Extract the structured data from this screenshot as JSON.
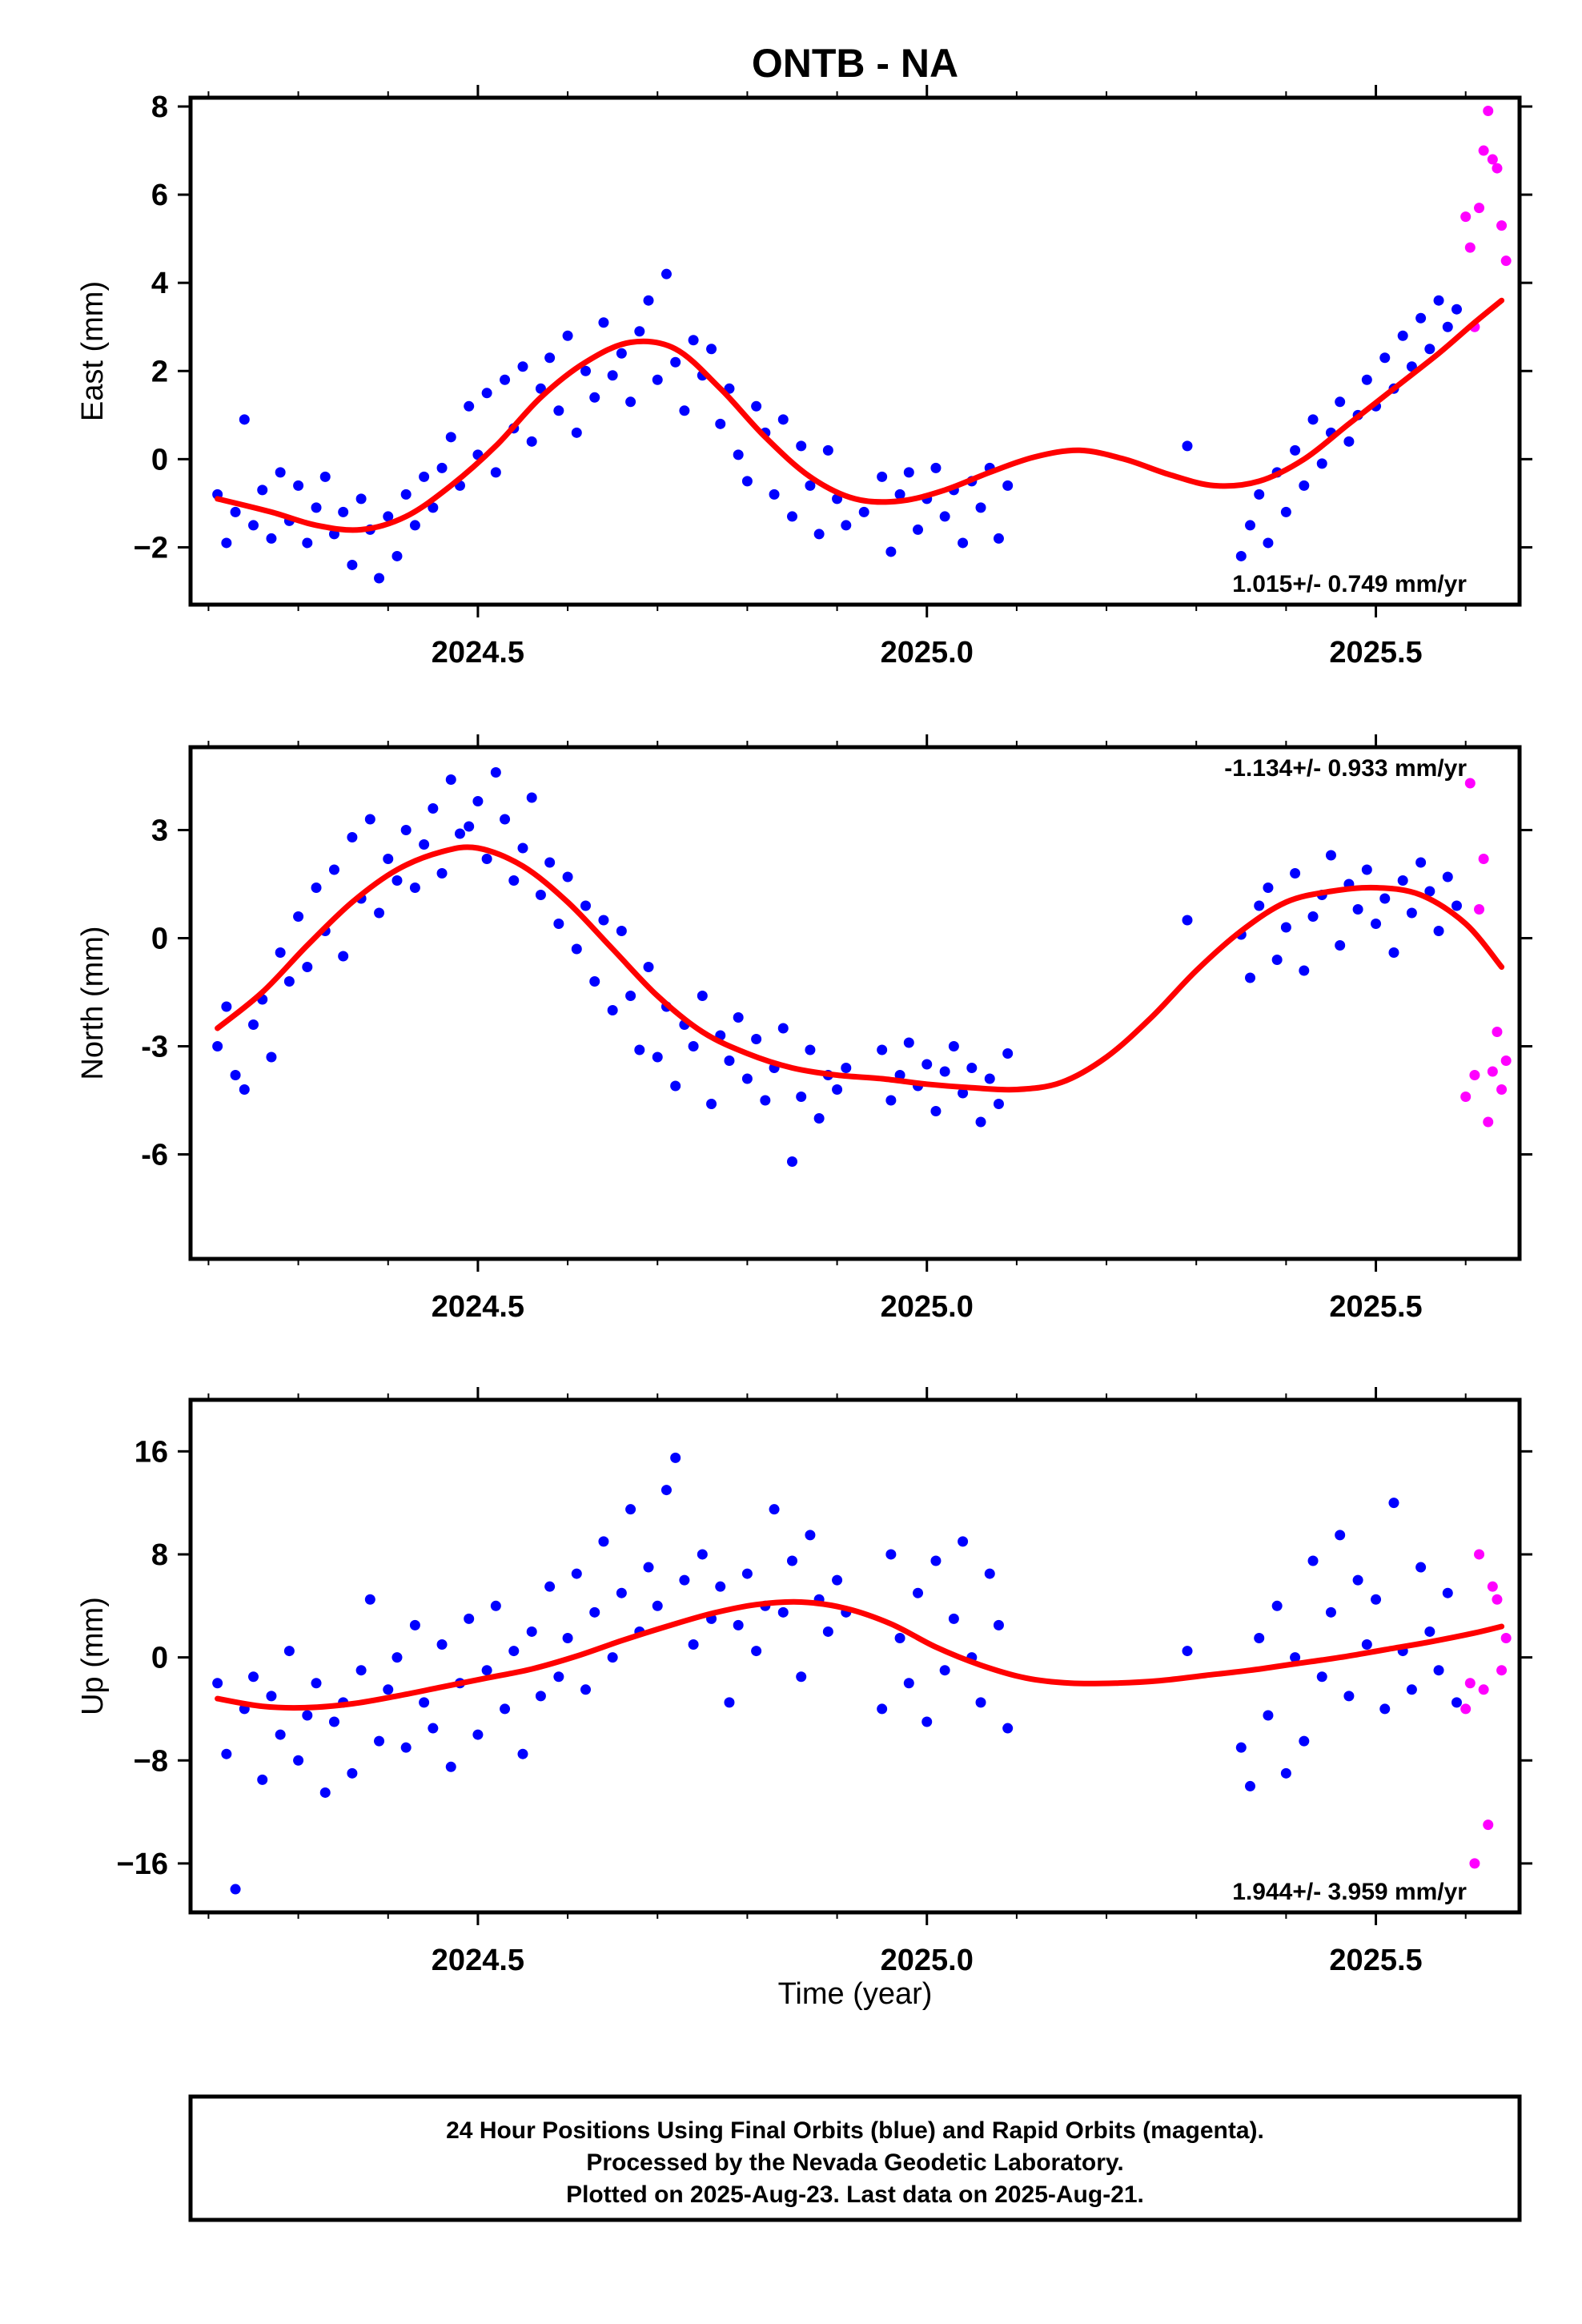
{
  "title": "ONTB - NA",
  "x_axis_label": "Time (year)",
  "caption": {
    "line1": "24 Hour Positions Using Final Orbits (blue) and Rapid Orbits (magenta).",
    "line2": "Processed by the Nevada Geodetic Laboratory.",
    "line3": "Plotted on 2025-Aug-23. Last data on 2025-Aug-21."
  },
  "colors": {
    "final": "#0000ff",
    "rapid": "#ff00ff",
    "fit": "#ff0000",
    "frame": "#000000"
  },
  "chart_data": [
    {
      "type": "scatter",
      "name": "east",
      "ylabel": "East (mm)",
      "xlim": [
        2024.18,
        2025.66
      ],
      "ylim": [
        -3.3,
        8.2
      ],
      "xticks": [
        2024.5,
        2025.0,
        2025.5
      ],
      "xtick_labels": [
        "2024.5",
        "2025.0",
        "2025.5"
      ],
      "yticks": [
        -2,
        0,
        2,
        4,
        6,
        8
      ],
      "ytick_labels": [
        "−2",
        "0",
        "2",
        "4",
        "6",
        "8"
      ],
      "rate_text": "1.015+/- 0.749 mm/yr",
      "rate_position": "bottom-right",
      "grid": false,
      "fit_curve": {
        "x": [
          2024.21,
          2024.27,
          2024.32,
          2024.37,
          2024.42,
          2024.47,
          2024.52,
          2024.57,
          2024.62,
          2024.67,
          2024.72,
          2024.77,
          2024.82,
          2024.87,
          2024.92,
          2024.97,
          2025.02,
          2025.07,
          2025.12,
          2025.17,
          2025.22,
          2025.27,
          2025.32,
          2025.37,
          2025.42,
          2025.47,
          2025.52,
          2025.57,
          2025.61,
          2025.64
        ],
        "y": [
          -0.9,
          -1.2,
          -1.5,
          -1.6,
          -1.3,
          -0.6,
          0.3,
          1.4,
          2.2,
          2.65,
          2.5,
          1.6,
          0.5,
          -0.4,
          -0.9,
          -0.95,
          -0.7,
          -0.3,
          0.05,
          0.2,
          0.0,
          -0.35,
          -0.6,
          -0.5,
          0.0,
          0.8,
          1.6,
          2.4,
          3.1,
          3.6
        ]
      },
      "final_x": [
        2024.21,
        2024.22,
        2024.23,
        2024.24,
        2024.25,
        2024.26,
        2024.27,
        2024.28,
        2024.29,
        2024.3,
        2024.31,
        2024.32,
        2024.33,
        2024.34,
        2024.35,
        2024.36,
        2024.37,
        2024.38,
        2024.39,
        2024.4,
        2024.41,
        2024.42,
        2024.43,
        2024.44,
        2024.45,
        2024.46,
        2024.47,
        2024.48,
        2024.49,
        2024.5,
        2024.51,
        2024.52,
        2024.53,
        2024.54,
        2024.55,
        2024.56,
        2024.57,
        2024.58,
        2024.59,
        2024.6,
        2024.61,
        2024.62,
        2024.63,
        2024.64,
        2024.65,
        2024.66,
        2024.67,
        2024.68,
        2024.69,
        2024.7,
        2024.71,
        2024.72,
        2024.73,
        2024.74,
        2024.75,
        2024.76,
        2024.77,
        2024.78,
        2024.79,
        2024.8,
        2024.81,
        2024.82,
        2024.83,
        2024.84,
        2024.85,
        2024.86,
        2024.87,
        2024.88,
        2024.89,
        2024.9,
        2024.91,
        2024.93,
        2024.95,
        2024.96,
        2024.97,
        2024.98,
        2024.99,
        2025.0,
        2025.01,
        2025.02,
        2025.03,
        2025.04,
        2025.05,
        2025.06,
        2025.07,
        2025.08,
        2025.09,
        2025.29,
        2025.35,
        2025.36,
        2025.37,
        2025.38,
        2025.39,
        2025.4,
        2025.41,
        2025.42,
        2025.43,
        2025.44,
        2025.45,
        2025.46,
        2025.47,
        2025.48,
        2025.49,
        2025.5,
        2025.51,
        2025.52,
        2025.53,
        2025.54,
        2025.55,
        2025.56,
        2025.57,
        2025.58,
        2025.59
      ],
      "final_y": [
        -0.8,
        -1.9,
        -1.2,
        0.9,
        -1.5,
        -0.7,
        -1.8,
        -0.3,
        -1.4,
        -0.6,
        -1.9,
        -1.1,
        -0.4,
        -1.7,
        -1.2,
        -2.4,
        -0.9,
        -1.6,
        -2.7,
        -1.3,
        -2.2,
        -0.8,
        -1.5,
        -0.4,
        -1.1,
        -0.2,
        0.5,
        -0.6,
        1.2,
        0.1,
        1.5,
        -0.3,
        1.8,
        0.7,
        2.1,
        0.4,
        1.6,
        2.3,
        1.1,
        2.8,
        0.6,
        2.0,
        1.4,
        3.1,
        1.9,
        2.4,
        1.3,
        2.9,
        3.6,
        1.8,
        4.2,
        2.2,
        1.1,
        2.7,
        1.9,
        2.5,
        0.8,
        1.6,
        0.1,
        -0.5,
        1.2,
        0.6,
        -0.8,
        0.9,
        -1.3,
        0.3,
        -0.6,
        -1.7,
        0.2,
        -0.9,
        -1.5,
        -1.2,
        -0.4,
        -2.1,
        -0.8,
        -0.3,
        -1.6,
        -0.9,
        -0.2,
        -1.3,
        -0.7,
        -1.9,
        -0.5,
        -1.1,
        -0.2,
        -1.8,
        -0.6,
        0.3,
        -2.2,
        -1.5,
        -0.8,
        -1.9,
        -0.3,
        -1.2,
        0.2,
        -0.6,
        0.9,
        -0.1,
        0.6,
        1.3,
        0.4,
        1.0,
        1.8,
        1.2,
        2.3,
        1.6,
        2.8,
        2.1,
        3.2,
        2.5,
        3.6,
        3.0,
        3.4
      ],
      "rapid_x": [
        2025.6,
        2025.605,
        2025.61,
        2025.615,
        2025.62,
        2025.625,
        2025.63,
        2025.635,
        2025.64,
        2025.645
      ],
      "rapid_y": [
        5.5,
        4.8,
        3.0,
        5.7,
        7.0,
        7.9,
        6.8,
        6.6,
        5.3,
        4.5
      ]
    },
    {
      "type": "scatter",
      "name": "north",
      "ylabel": "North (mm)",
      "xlim": [
        2024.18,
        2025.66
      ],
      "ylim": [
        -8.9,
        5.3
      ],
      "xticks": [
        2024.5,
        2025.0,
        2025.5
      ],
      "xtick_labels": [
        "2024.5",
        "2025.0",
        "2025.5"
      ],
      "yticks": [
        -6,
        -3,
        0,
        3
      ],
      "ytick_labels": [
        "-6",
        "-3",
        "0",
        "3"
      ],
      "rate_text": "-1.134+/- 0.933 mm/yr",
      "rate_position": "top-right",
      "grid": false,
      "fit_curve": {
        "x": [
          2024.21,
          2024.26,
          2024.31,
          2024.36,
          2024.41,
          2024.46,
          2024.5,
          2024.55,
          2024.6,
          2024.65,
          2024.7,
          2024.75,
          2024.8,
          2024.85,
          2024.9,
          2024.95,
          2025.0,
          2025.05,
          2025.1,
          2025.15,
          2025.2,
          2025.25,
          2025.3,
          2025.35,
          2025.4,
          2025.45,
          2025.5,
          2025.55,
          2025.6,
          2025.64
        ],
        "y": [
          -2.5,
          -1.5,
          -0.2,
          1.0,
          1.9,
          2.4,
          2.5,
          2.0,
          1.0,
          -0.3,
          -1.6,
          -2.6,
          -3.2,
          -3.6,
          -3.8,
          -3.9,
          -4.05,
          -4.15,
          -4.2,
          -4.0,
          -3.3,
          -2.2,
          -0.9,
          0.2,
          1.0,
          1.3,
          1.4,
          1.2,
          0.4,
          -0.8
        ]
      },
      "final_x": [
        2024.21,
        2024.22,
        2024.23,
        2024.24,
        2024.25,
        2024.26,
        2024.27,
        2024.28,
        2024.29,
        2024.3,
        2024.31,
        2024.32,
        2024.33,
        2024.34,
        2024.35,
        2024.36,
        2024.37,
        2024.38,
        2024.39,
        2024.4,
        2024.41,
        2024.42,
        2024.43,
        2024.44,
        2024.45,
        2024.46,
        2024.47,
        2024.48,
        2024.49,
        2024.5,
        2024.51,
        2024.52,
        2024.53,
        2024.54,
        2024.55,
        2024.56,
        2024.57,
        2024.58,
        2024.59,
        2024.6,
        2024.61,
        2024.62,
        2024.63,
        2024.64,
        2024.65,
        2024.66,
        2024.67,
        2024.68,
        2024.69,
        2024.7,
        2024.71,
        2024.72,
        2024.73,
        2024.74,
        2024.75,
        2024.76,
        2024.77,
        2024.78,
        2024.79,
        2024.8,
        2024.81,
        2024.82,
        2024.83,
        2024.84,
        2024.85,
        2024.86,
        2024.87,
        2024.88,
        2024.89,
        2024.9,
        2024.91,
        2024.95,
        2024.96,
        2024.97,
        2024.98,
        2024.99,
        2025.0,
        2025.01,
        2025.02,
        2025.03,
        2025.04,
        2025.05,
        2025.06,
        2025.07,
        2025.08,
        2025.09,
        2025.29,
        2025.35,
        2025.36,
        2025.37,
        2025.38,
        2025.39,
        2025.4,
        2025.41,
        2025.42,
        2025.43,
        2025.44,
        2025.45,
        2025.46,
        2025.47,
        2025.48,
        2025.49,
        2025.5,
        2025.51,
        2025.52,
        2025.53,
        2025.54,
        2025.55,
        2025.56,
        2025.57,
        2025.58,
        2025.59
      ],
      "final_y": [
        -3.0,
        -1.9,
        -3.8,
        -4.2,
        -2.4,
        -1.7,
        -3.3,
        -0.4,
        -1.2,
        0.6,
        -0.8,
        1.4,
        0.2,
        1.9,
        -0.5,
        2.8,
        1.1,
        3.3,
        0.7,
        2.2,
        1.6,
        3.0,
        1.4,
        2.6,
        3.6,
        1.8,
        4.4,
        2.9,
        3.1,
        3.8,
        2.2,
        4.6,
        3.3,
        1.6,
        2.5,
        3.9,
        1.2,
        2.1,
        0.4,
        1.7,
        -0.3,
        0.9,
        -1.2,
        0.5,
        -2.0,
        0.2,
        -1.6,
        -3.1,
        -0.8,
        -3.3,
        -1.9,
        -4.1,
        -2.4,
        -3.0,
        -1.6,
        -4.6,
        -2.7,
        -3.4,
        -2.2,
        -3.9,
        -2.8,
        -4.5,
        -3.6,
        -2.5,
        -6.2,
        -4.4,
        -3.1,
        -5.0,
        -3.8,
        -4.2,
        -3.6,
        -3.1,
        -4.5,
        -3.8,
        -2.9,
        -4.1,
        -3.5,
        -4.8,
        -3.7,
        -3.0,
        -4.3,
        -3.6,
        -5.1,
        -3.9,
        -4.6,
        -3.2,
        0.5,
        0.1,
        -1.1,
        0.9,
        1.4,
        -0.6,
        0.3,
        1.8,
        -0.9,
        0.6,
        1.2,
        2.3,
        -0.2,
        1.5,
        0.8,
        1.9,
        0.4,
        1.1,
        -0.4,
        1.6,
        0.7,
        2.1,
        1.3,
        0.2,
        1.7,
        0.9
      ],
      "rapid_x": [
        2025.6,
        2025.605,
        2025.61,
        2025.615,
        2025.62,
        2025.625,
        2025.63,
        2025.635,
        2025.64,
        2025.645
      ],
      "rapid_y": [
        -4.4,
        4.3,
        -3.8,
        0.8,
        2.2,
        -5.1,
        -3.7,
        -2.6,
        -4.2,
        -3.4
      ]
    },
    {
      "type": "scatter",
      "name": "up",
      "ylabel": "Up (mm)",
      "xlim": [
        2024.18,
        2025.66
      ],
      "ylim": [
        -19.8,
        20.0
      ],
      "xticks": [
        2024.5,
        2025.0,
        2025.5
      ],
      "xtick_labels": [
        "2024.5",
        "2025.0",
        "2025.5"
      ],
      "yticks": [
        -16,
        -8,
        0,
        8,
        16
      ],
      "ytick_labels": [
        "−16",
        "−8",
        "0",
        "8",
        "16"
      ],
      "rate_text": "1.944+/- 3.959 mm/yr",
      "rate_position": "bottom-right",
      "grid": false,
      "fit_curve": {
        "x": [
          2024.21,
          2024.26,
          2024.31,
          2024.36,
          2024.41,
          2024.46,
          2024.51,
          2024.56,
          2024.61,
          2024.66,
          2024.71,
          2024.76,
          2024.81,
          2024.86,
          2024.91,
          2024.96,
          2025.01,
          2025.06,
          2025.11,
          2025.16,
          2025.21,
          2025.26,
          2025.31,
          2025.36,
          2025.41,
          2025.46,
          2025.51,
          2025.56,
          2025.61,
          2025.64
        ],
        "y": [
          -3.2,
          -3.8,
          -3.9,
          -3.6,
          -3.0,
          -2.3,
          -1.6,
          -0.9,
          0.1,
          1.3,
          2.4,
          3.4,
          4.1,
          4.3,
          3.8,
          2.6,
          0.8,
          -0.6,
          -1.6,
          -2.0,
          -2.0,
          -1.8,
          -1.4,
          -1.0,
          -0.5,
          0.0,
          0.6,
          1.2,
          1.9,
          2.4
        ]
      },
      "final_x": [
        2024.21,
        2024.22,
        2024.23,
        2024.24,
        2024.25,
        2024.26,
        2024.27,
        2024.28,
        2024.29,
        2024.3,
        2024.31,
        2024.32,
        2024.33,
        2024.34,
        2024.35,
        2024.36,
        2024.37,
        2024.38,
        2024.39,
        2024.4,
        2024.41,
        2024.42,
        2024.43,
        2024.44,
        2024.45,
        2024.46,
        2024.47,
        2024.48,
        2024.49,
        2024.5,
        2024.51,
        2024.52,
        2024.53,
        2024.54,
        2024.55,
        2024.56,
        2024.57,
        2024.58,
        2024.59,
        2024.6,
        2024.61,
        2024.62,
        2024.63,
        2024.64,
        2024.65,
        2024.66,
        2024.67,
        2024.68,
        2024.69,
        2024.7,
        2024.71,
        2024.72,
        2024.73,
        2024.74,
        2024.75,
        2024.76,
        2024.77,
        2024.78,
        2024.79,
        2024.8,
        2024.81,
        2024.82,
        2024.83,
        2024.84,
        2024.85,
        2024.86,
        2024.87,
        2024.88,
        2024.89,
        2024.9,
        2024.91,
        2024.95,
        2024.96,
        2024.97,
        2024.98,
        2024.99,
        2025.0,
        2025.01,
        2025.02,
        2025.03,
        2025.04,
        2025.05,
        2025.06,
        2025.07,
        2025.08,
        2025.09,
        2025.29,
        2025.35,
        2025.36,
        2025.37,
        2025.38,
        2025.39,
        2025.4,
        2025.41,
        2025.42,
        2025.43,
        2025.44,
        2025.45,
        2025.46,
        2025.47,
        2025.48,
        2025.49,
        2025.5,
        2025.51,
        2025.52,
        2025.53,
        2025.54,
        2025.55,
        2025.56,
        2025.57,
        2025.58,
        2025.59
      ],
      "final_y": [
        -2.0,
        -7.5,
        -18.0,
        -4.0,
        -1.5,
        -9.5,
        -3.0,
        -6.0,
        0.5,
        -8.0,
        -4.5,
        -2.0,
        -10.5,
        -5.0,
        -3.5,
        -9.0,
        -1.0,
        4.5,
        -6.5,
        -2.5,
        0.0,
        -7.0,
        2.5,
        -3.5,
        -5.5,
        1.0,
        -8.5,
        -2.0,
        3.0,
        -6.0,
        -1.0,
        4.0,
        -4.0,
        0.5,
        -7.5,
        2.0,
        -3.0,
        5.5,
        -1.5,
        1.5,
        6.5,
        -2.5,
        3.5,
        9.0,
        0.0,
        5.0,
        11.5,
        2.0,
        7.0,
        4.0,
        13.0,
        15.5,
        6.0,
        1.0,
        8.0,
        3.0,
        5.5,
        -3.5,
        2.5,
        6.5,
        0.5,
        4.0,
        11.5,
        3.5,
        7.5,
        -1.5,
        9.5,
        4.5,
        2.0,
        6.0,
        3.5,
        -4.0,
        8.0,
        1.5,
        -2.0,
        5.0,
        -5.0,
        7.5,
        -1.0,
        3.0,
        9.0,
        0.0,
        -3.5,
        6.5,
        2.5,
        -5.5,
        0.5,
        -7.0,
        -10.0,
        1.5,
        -4.5,
        4.0,
        -9.0,
        0.0,
        -6.5,
        7.5,
        -1.5,
        3.5,
        9.5,
        -3.0,
        6.0,
        1.0,
        4.5,
        -4.0,
        12.0,
        0.5,
        -2.5,
        7.0,
        2.0,
        -1.0,
        5.0,
        -3.5,
        3.0
      ],
      "rapid_x": [
        2025.6,
        2025.605,
        2025.61,
        2025.615,
        2025.62,
        2025.625,
        2025.63,
        2025.635,
        2025.64,
        2025.645
      ],
      "rapid_y": [
        -4.0,
        -2.0,
        -16.0,
        8.0,
        -2.5,
        -13.0,
        5.5,
        4.5,
        -1.0,
        1.5
      ]
    }
  ]
}
